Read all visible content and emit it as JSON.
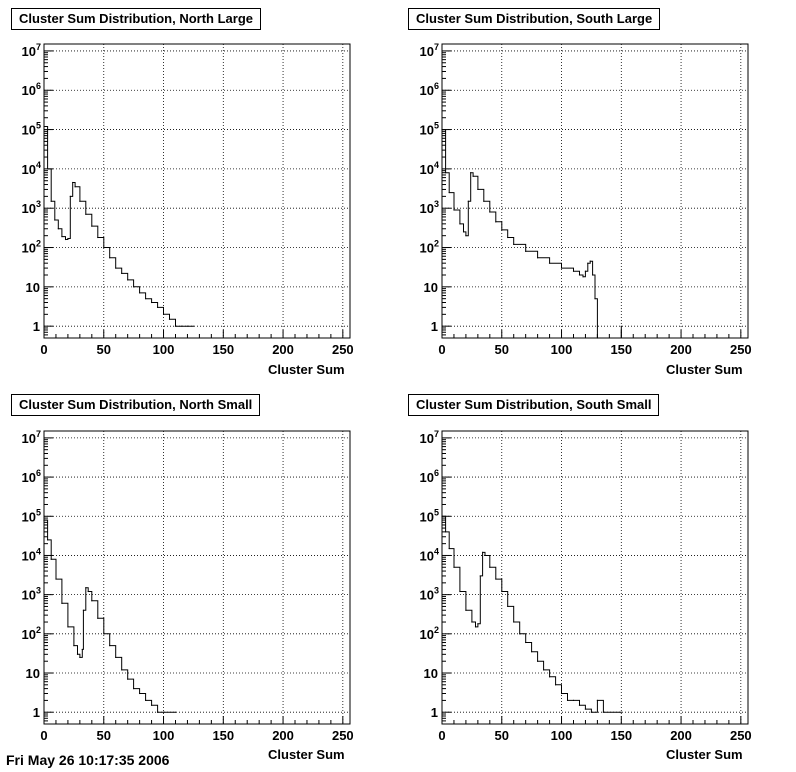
{
  "footer_text": "Fri May 26 10:17:35 2006",
  "chart_data": [
    {
      "type": "histogram",
      "title": "Cluster Sum Distribution, North Large",
      "xlabel": "Cluster Sum",
      "ylabel": "",
      "xlim": [
        0,
        256
      ],
      "ylim": [
        0.5,
        15000000
      ],
      "yscale": "log",
      "grid": true,
      "x_ticks": [
        0,
        50,
        100,
        150,
        200,
        250
      ],
      "y_ticks": [
        {
          "value": 1,
          "base": "1",
          "exp": ""
        },
        {
          "value": 10,
          "base": "10",
          "exp": ""
        },
        {
          "value": 100,
          "base": "10",
          "exp": "2"
        },
        {
          "value": 1000,
          "base": "10",
          "exp": "3"
        },
        {
          "value": 10000,
          "base": "10",
          "exp": "4"
        },
        {
          "value": 100000,
          "base": "10",
          "exp": "5"
        },
        {
          "value": 1000000,
          "base": "10",
          "exp": "6"
        },
        {
          "value": 10000000,
          "base": "10",
          "exp": "7"
        }
      ],
      "points": [
        [
          0,
          120000
        ],
        [
          3,
          10000
        ],
        [
          6,
          1500
        ],
        [
          9,
          500
        ],
        [
          12,
          300
        ],
        [
          15,
          190
        ],
        [
          18,
          160
        ],
        [
          20,
          170
        ],
        [
          22,
          2000
        ],
        [
          24,
          4500
        ],
        [
          26,
          3500
        ],
        [
          30,
          1500
        ],
        [
          35,
          700
        ],
        [
          40,
          350
        ],
        [
          45,
          180
        ],
        [
          50,
          100
        ],
        [
          55,
          55
        ],
        [
          60,
          30
        ],
        [
          65,
          22
        ],
        [
          70,
          15
        ],
        [
          75,
          10
        ],
        [
          80,
          7
        ],
        [
          85,
          5
        ],
        [
          90,
          4
        ],
        [
          95,
          3
        ],
        [
          100,
          2
        ],
        [
          105,
          1.5
        ],
        [
          110,
          1
        ],
        [
          115,
          1
        ],
        [
          120,
          1
        ],
        [
          125,
          1
        ]
      ]
    },
    {
      "type": "histogram",
      "title": "Cluster Sum Distribution, South Large",
      "xlabel": "Cluster Sum",
      "ylabel": "",
      "xlim": [
        0,
        256
      ],
      "ylim": [
        0.5,
        15000000
      ],
      "yscale": "log",
      "grid": true,
      "x_ticks": [
        0,
        50,
        100,
        150,
        200,
        250
      ],
      "y_ticks": [
        {
          "value": 1,
          "base": "1",
          "exp": ""
        },
        {
          "value": 10,
          "base": "10",
          "exp": ""
        },
        {
          "value": 100,
          "base": "10",
          "exp": "2"
        },
        {
          "value": 1000,
          "base": "10",
          "exp": "3"
        },
        {
          "value": 10000,
          "base": "10",
          "exp": "4"
        },
        {
          "value": 100000,
          "base": "10",
          "exp": "5"
        },
        {
          "value": 1000000,
          "base": "10",
          "exp": "6"
        },
        {
          "value": 10000000,
          "base": "10",
          "exp": "7"
        }
      ],
      "points": [
        [
          0,
          100000
        ],
        [
          3,
          8000
        ],
        [
          6,
          2500
        ],
        [
          10,
          900
        ],
        [
          15,
          400
        ],
        [
          18,
          250
        ],
        [
          20,
          200
        ],
        [
          22,
          1500
        ],
        [
          24,
          8000
        ],
        [
          26,
          6500
        ],
        [
          30,
          3000
        ],
        [
          35,
          1500
        ],
        [
          40,
          800
        ],
        [
          45,
          450
        ],
        [
          50,
          280
        ],
        [
          55,
          180
        ],
        [
          60,
          120
        ],
        [
          70,
          80
        ],
        [
          80,
          55
        ],
        [
          90,
          40
        ],
        [
          100,
          30
        ],
        [
          110,
          25
        ],
        [
          115,
          20
        ],
        [
          118,
          18
        ],
        [
          120,
          25
        ],
        [
          122,
          40
        ],
        [
          124,
          45
        ],
        [
          126,
          20
        ],
        [
          128,
          5
        ],
        [
          130,
          0.5
        ],
        [
          150,
          1
        ]
      ]
    },
    {
      "type": "histogram",
      "title": "Cluster Sum Distribution, North Small",
      "xlabel": "Cluster Sum",
      "ylabel": "",
      "xlim": [
        0,
        256
      ],
      "ylim": [
        0.5,
        15000000
      ],
      "yscale": "log",
      "grid": true,
      "x_ticks": [
        0,
        50,
        100,
        150,
        200,
        250
      ],
      "y_ticks": [
        {
          "value": 1,
          "base": "1",
          "exp": ""
        },
        {
          "value": 10,
          "base": "10",
          "exp": ""
        },
        {
          "value": 100,
          "base": "10",
          "exp": "2"
        },
        {
          "value": 1000,
          "base": "10",
          "exp": "3"
        },
        {
          "value": 10000,
          "base": "10",
          "exp": "4"
        },
        {
          "value": 100000,
          "base": "10",
          "exp": "5"
        },
        {
          "value": 1000000,
          "base": "10",
          "exp": "6"
        },
        {
          "value": 10000000,
          "base": "10",
          "exp": "7"
        }
      ],
      "points": [
        [
          0,
          80000
        ],
        [
          3,
          25000
        ],
        [
          6,
          8000
        ],
        [
          10,
          2500
        ],
        [
          15,
          600
        ],
        [
          20,
          150
        ],
        [
          25,
          50
        ],
        [
          28,
          30
        ],
        [
          30,
          25
        ],
        [
          32,
          40
        ],
        [
          33,
          400
        ],
        [
          35,
          1500
        ],
        [
          37,
          1200
        ],
        [
          40,
          700
        ],
        [
          45,
          250
        ],
        [
          50,
          100
        ],
        [
          55,
          50
        ],
        [
          60,
          25
        ],
        [
          65,
          12
        ],
        [
          70,
          7
        ],
        [
          75,
          4
        ],
        [
          80,
          3
        ],
        [
          85,
          2
        ],
        [
          90,
          1.5
        ],
        [
          95,
          1
        ],
        [
          100,
          1
        ],
        [
          110,
          1
        ]
      ]
    },
    {
      "type": "histogram",
      "title": "Cluster Sum Distribution, South Small",
      "xlabel": "Cluster Sum",
      "ylabel": "",
      "xlim": [
        0,
        256
      ],
      "ylim": [
        0.5,
        15000000
      ],
      "yscale": "log",
      "grid": true,
      "x_ticks": [
        0,
        50,
        100,
        150,
        200,
        250
      ],
      "y_ticks": [
        {
          "value": 1,
          "base": "1",
          "exp": ""
        },
        {
          "value": 10,
          "base": "10",
          "exp": ""
        },
        {
          "value": 100,
          "base": "10",
          "exp": "2"
        },
        {
          "value": 1000,
          "base": "10",
          "exp": "3"
        },
        {
          "value": 10000,
          "base": "10",
          "exp": "4"
        },
        {
          "value": 100000,
          "base": "10",
          "exp": "5"
        },
        {
          "value": 1000000,
          "base": "10",
          "exp": "6"
        },
        {
          "value": 10000000,
          "base": "10",
          "exp": "7"
        }
      ],
      "points": [
        [
          0,
          100000
        ],
        [
          3,
          40000
        ],
        [
          6,
          15000
        ],
        [
          10,
          5000
        ],
        [
          15,
          1200
        ],
        [
          20,
          400
        ],
        [
          25,
          200
        ],
        [
          28,
          150
        ],
        [
          30,
          180
        ],
        [
          32,
          3000
        ],
        [
          34,
          12000
        ],
        [
          36,
          10000
        ],
        [
          40,
          5000
        ],
        [
          45,
          2500
        ],
        [
          50,
          1200
        ],
        [
          55,
          500
        ],
        [
          60,
          200
        ],
        [
          65,
          100
        ],
        [
          70,
          60
        ],
        [
          75,
          35
        ],
        [
          80,
          20
        ],
        [
          85,
          12
        ],
        [
          90,
          8
        ],
        [
          95,
          5
        ],
        [
          100,
          3
        ],
        [
          105,
          2
        ],
        [
          110,
          2
        ],
        [
          115,
          1.5
        ],
        [
          120,
          1.2
        ],
        [
          125,
          1
        ],
        [
          130,
          2
        ],
        [
          135,
          1
        ],
        [
          150,
          1
        ]
      ]
    }
  ]
}
